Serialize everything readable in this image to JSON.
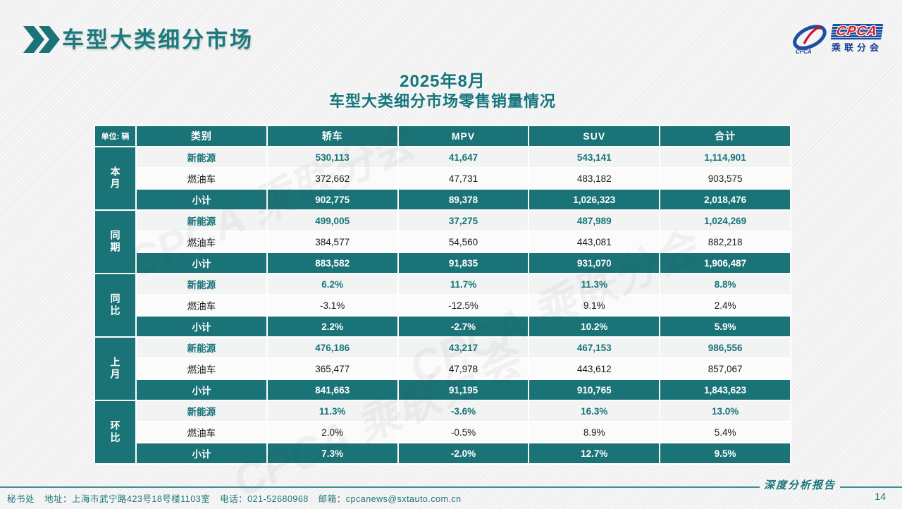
{
  "slide": {
    "accent": "#1A7377",
    "header": {
      "title": "车型大类细分市场"
    },
    "logo": {
      "text": "CPCA",
      "subtext": "乘联分会"
    },
    "table_title_line1": "2025年8月",
    "table_title_line2": "车型大类细分市场零售销量情况",
    "watermark": "CPCA 乘联分会"
  },
  "table": {
    "unit_label": "单位: 辆",
    "columns": [
      "类别",
      "轿车",
      "MPV",
      "SUV",
      "合计"
    ],
    "groups": [
      {
        "label": "本月",
        "rows": [
          {
            "category": "新能源",
            "values": [
              "530,113",
              "41,647",
              "543,141",
              "1,114,901"
            ]
          },
          {
            "category": "燃油车",
            "values": [
              "372,662",
              "47,731",
              "483,182",
              "903,575"
            ]
          },
          {
            "category": "小计",
            "values": [
              "902,775",
              "89,378",
              "1,026,323",
              "2,018,476"
            ]
          }
        ]
      },
      {
        "label": "同期",
        "rows": [
          {
            "category": "新能源",
            "values": [
              "499,005",
              "37,275",
              "487,989",
              "1,024,269"
            ]
          },
          {
            "category": "燃油车",
            "values": [
              "384,577",
              "54,560",
              "443,081",
              "882,218"
            ]
          },
          {
            "category": "小计",
            "values": [
              "883,582",
              "91,835",
              "931,070",
              "1,906,487"
            ]
          }
        ]
      },
      {
        "label": "同比",
        "rows": [
          {
            "category": "新能源",
            "values": [
              "6.2%",
              "11.7%",
              "11.3%",
              "8.8%"
            ]
          },
          {
            "category": "燃油车",
            "values": [
              "-3.1%",
              "-12.5%",
              "9.1%",
              "2.4%"
            ]
          },
          {
            "category": "小计",
            "values": [
              "2.2%",
              "-2.7%",
              "10.2%",
              "5.9%"
            ]
          }
        ]
      },
      {
        "label": "上月",
        "rows": [
          {
            "category": "新能源",
            "values": [
              "476,186",
              "43,217",
              "467,153",
              "986,556"
            ]
          },
          {
            "category": "燃油车",
            "values": [
              "365,477",
              "47,978",
              "443,612",
              "857,067"
            ]
          },
          {
            "category": "小计",
            "values": [
              "841,663",
              "91,195",
              "910,765",
              "1,843,623"
            ]
          }
        ]
      },
      {
        "label": "环比",
        "rows": [
          {
            "category": "新能源",
            "values": [
              "11.3%",
              "-3.6%",
              "16.3%",
              "13.0%"
            ]
          },
          {
            "category": "燃油车",
            "values": [
              "2.0%",
              "-0.5%",
              "8.9%",
              "5.4%"
            ]
          },
          {
            "category": "小计",
            "values": [
              "7.3%",
              "-2.0%",
              "12.7%",
              "9.5%"
            ]
          }
        ]
      }
    ]
  },
  "footer": {
    "secretariat": "秘书处",
    "address": "地址：上海市武宁路423号18号楼1103室",
    "phone": "电话：021-52680968",
    "email": "邮箱：cpcanews@sxtauto.com.cn",
    "report_label": "深度分析报告",
    "page_number": "14"
  }
}
